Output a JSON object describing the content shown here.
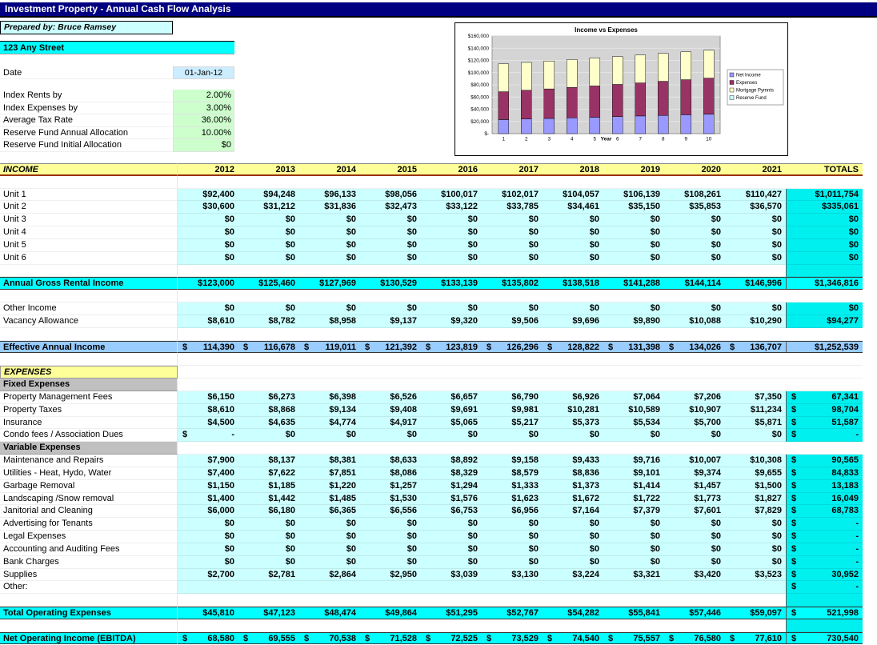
{
  "title_bar": {
    "title": "Investment Property - Annual Cash Flow Analysis"
  },
  "header": {
    "prepared_by": "Prepared by: Bruce Ramsey",
    "address": "123 Any Street",
    "date_label": "Date",
    "date_value": "01-Jan-12",
    "params": [
      {
        "label": "Index Rents by",
        "value": "2.00%"
      },
      {
        "label": "Index Expenses by",
        "value": "3.00%"
      },
      {
        "label": "Average Tax Rate",
        "value": "36.00%"
      },
      {
        "label": "Reserve Fund Annual Allocation",
        "value": "10.00%"
      },
      {
        "label": "Reserve Fund Initial Allocation",
        "value": "$0"
      }
    ]
  },
  "colors": {
    "title_bar": "#000080",
    "bright_cyan": "#00FFFF",
    "light_cyan": "#CCFFFF",
    "totals_cyan": "#00F0F0",
    "effective_blue": "#99CCFF",
    "section_yellow": "#FFFF99",
    "subsection_gray": "#C0C0C0",
    "param_green": "#CCFFCC",
    "date_blue": "#CCECFF",
    "header_underline": "#993300"
  },
  "chart_data": {
    "type": "bar",
    "stacked": true,
    "title": "Income vs Expenses",
    "xlabel": "Year",
    "categories": [
      "1",
      "2",
      "3",
      "4",
      "5",
      "6",
      "7",
      "8",
      "9",
      "10"
    ],
    "ylim": [
      0,
      160000
    ],
    "ytick_step": 20000,
    "ytick_labels": [
      "$-",
      "$20,000",
      "$40,000",
      "$60,000",
      "$80,000",
      "$100,000",
      "$120,000",
      "$140,000",
      "$160,000"
    ],
    "grid": true,
    "plot_bg": "#D4D4D4",
    "legend_position": "right",
    "series": [
      {
        "name": "Net Income",
        "color": "#9999FF",
        "values": [
          23000,
          23975,
          24958,
          25948,
          26945,
          27949,
          28960,
          29977,
          31000,
          32030
        ]
      },
      {
        "name": "Expenses",
        "color": "#993366",
        "values": [
          45810,
          47123,
          48474,
          49864,
          51295,
          52767,
          54282,
          55841,
          57446,
          59097
        ]
      },
      {
        "name": "Mortgage Pymnts",
        "color": "#FFFFCC",
        "values": [
          45580,
          45580,
          45580,
          45580,
          45580,
          45580,
          45580,
          45580,
          45580,
          45580
        ]
      }
    ],
    "legend": [
      {
        "label": "Net Income",
        "color": "#9999FF"
      },
      {
        "label": "Expenses",
        "color": "#993366"
      },
      {
        "label": "Mortgage Pymnts",
        "color": "#FFFFCC"
      },
      {
        "label": "Reserve Fund",
        "color": "#CCFFFF"
      }
    ]
  },
  "table": {
    "income_label": "INCOME",
    "totals_label": "TOTALS",
    "columns": [
      "2012",
      "2013",
      "2014",
      "2015",
      "2016",
      "2017",
      "2018",
      "2019",
      "2020",
      "2021"
    ],
    "rows": [
      {
        "t": "head"
      },
      {
        "t": "blank"
      },
      {
        "l": "Unit 1",
        "t": "data",
        "v": [
          "$92,400",
          "$94,248",
          "$96,133",
          "$98,056",
          "$100,017",
          "$102,017",
          "$104,057",
          "$106,139",
          "$108,261",
          "$110,427"
        ],
        "tot": "$1,011,754"
      },
      {
        "l": "Unit 2",
        "t": "data",
        "v": [
          "$30,600",
          "$31,212",
          "$31,836",
          "$32,473",
          "$33,122",
          "$33,785",
          "$34,461",
          "$35,150",
          "$35,853",
          "$36,570"
        ],
        "tot": "$335,061"
      },
      {
        "l": "Unit 3",
        "t": "data",
        "v": [
          "$0",
          "$0",
          "$0",
          "$0",
          "$0",
          "$0",
          "$0",
          "$0",
          "$0",
          "$0"
        ],
        "tot": "$0"
      },
      {
        "l": "Unit 4",
        "t": "data",
        "v": [
          "$0",
          "$0",
          "$0",
          "$0",
          "$0",
          "$0",
          "$0",
          "$0",
          "$0",
          "$0"
        ],
        "tot": "$0"
      },
      {
        "l": "Unit 5",
        "t": "data",
        "v": [
          "$0",
          "$0",
          "$0",
          "$0",
          "$0",
          "$0",
          "$0",
          "$0",
          "$0",
          "$0"
        ],
        "tot": "$0"
      },
      {
        "l": "Unit 6",
        "t": "data",
        "v": [
          "$0",
          "$0",
          "$0",
          "$0",
          "$0",
          "$0",
          "$0",
          "$0",
          "$0",
          "$0"
        ],
        "tot": "$0"
      },
      {
        "t": "blankct"
      },
      {
        "l": "Annual Gross Rental Income",
        "t": "cyan",
        "v": [
          "$123,000",
          "$125,460",
          "$127,969",
          "$130,529",
          "$133,139",
          "$135,802",
          "$138,518",
          "$141,288",
          "$144,114",
          "$146,996"
        ],
        "tot": "$1,346,816"
      },
      {
        "t": "blank"
      },
      {
        "l": "Other Income",
        "t": "data",
        "v": [
          "$0",
          "$0",
          "$0",
          "$0",
          "$0",
          "$0",
          "$0",
          "$0",
          "$0",
          "$0"
        ],
        "tot": "$0"
      },
      {
        "l": "Vacancy Allowance",
        "t": "data",
        "v": [
          "$8,610",
          "$8,782",
          "$8,958",
          "$9,137",
          "$9,320",
          "$9,506",
          "$9,696",
          "$9,890",
          "$10,088",
          "$10,290"
        ],
        "tot": "$94,277"
      },
      {
        "t": "blank"
      },
      {
        "l": "Effective Annual Income",
        "t": "blue",
        "v": [
          "$|114,390",
          "$|116,678",
          "$|119,011",
          "$|121,392",
          "$|123,819",
          "$|126,296",
          "$|128,822",
          "$|131,398",
          "$|134,026",
          "$|136,707"
        ],
        "tot": "$1,252,539"
      },
      {
        "t": "blank"
      },
      {
        "l": "EXPENSES",
        "t": "section"
      },
      {
        "l": "Fixed Expenses",
        "t": "sub"
      },
      {
        "l": "Property Management Fees",
        "t": "data",
        "v": [
          "$6,150",
          "$6,273",
          "$6,398",
          "$6,526",
          "$6,657",
          "$6,790",
          "$6,926",
          "$7,064",
          "$7,206",
          "$7,350"
        ],
        "tot": "$|67,341"
      },
      {
        "l": "Property Taxes",
        "t": "data",
        "v": [
          "$8,610",
          "$8,868",
          "$9,134",
          "$9,408",
          "$9,691",
          "$9,981",
          "$10,281",
          "$10,589",
          "$10,907",
          "$11,234"
        ],
        "tot": "$|98,704"
      },
      {
        "l": "Insurance",
        "t": "data",
        "v": [
          "$4,500",
          "$4,635",
          "$4,774",
          "$4,917",
          "$5,065",
          "$5,217",
          "$5,373",
          "$5,534",
          "$5,700",
          "$5,871"
        ],
        "tot": "$|51,587"
      },
      {
        "l": "Condo fees / Association Dues",
        "t": "data",
        "v": [
          "$|-",
          "$0",
          "$0",
          "$0",
          "$0",
          "$0",
          "$0",
          "$0",
          "$0",
          "$0"
        ],
        "tot": "$|-"
      },
      {
        "l": "Variable Expenses",
        "t": "sub"
      },
      {
        "l": "Maintenance and Repairs",
        "t": "data",
        "v": [
          "$7,900",
          "$8,137",
          "$8,381",
          "$8,633",
          "$8,892",
          "$9,158",
          "$9,433",
          "$9,716",
          "$10,007",
          "$10,308"
        ],
        "tot": "$|90,565"
      },
      {
        "l": "Utilities - Heat, Hydo, Water",
        "t": "data",
        "v": [
          "$7,400",
          "$7,622",
          "$7,851",
          "$8,086",
          "$8,329",
          "$8,579",
          "$8,836",
          "$9,101",
          "$9,374",
          "$9,655"
        ],
        "tot": "$|84,833"
      },
      {
        "l": "Garbage Removal",
        "t": "data",
        "v": [
          "$1,150",
          "$1,185",
          "$1,220",
          "$1,257",
          "$1,294",
          "$1,333",
          "$1,373",
          "$1,414",
          "$1,457",
          "$1,500"
        ],
        "tot": "$|13,183"
      },
      {
        "l": "Landscaping /Snow removal",
        "t": "data",
        "v": [
          "$1,400",
          "$1,442",
          "$1,485",
          "$1,530",
          "$1,576",
          "$1,623",
          "$1,672",
          "$1,722",
          "$1,773",
          "$1,827"
        ],
        "tot": "$|16,049"
      },
      {
        "l": "Janitorial and Cleaning",
        "t": "data",
        "v": [
          "$6,000",
          "$6,180",
          "$6,365",
          "$6,556",
          "$6,753",
          "$6,956",
          "$7,164",
          "$7,379",
          "$7,601",
          "$7,829"
        ],
        "tot": "$|68,783"
      },
      {
        "l": "Advertising for Tenants",
        "t": "data",
        "v": [
          "$0",
          "$0",
          "$0",
          "$0",
          "$0",
          "$0",
          "$0",
          "$0",
          "$0",
          "$0"
        ],
        "tot": "$|-"
      },
      {
        "l": "Legal Expenses",
        "t": "data",
        "v": [
          "$0",
          "$0",
          "$0",
          "$0",
          "$0",
          "$0",
          "$0",
          "$0",
          "$0",
          "$0"
        ],
        "tot": "$|-"
      },
      {
        "l": "Accounting and Auditing Fees",
        "t": "data",
        "v": [
          "$0",
          "$0",
          "$0",
          "$0",
          "$0",
          "$0",
          "$0",
          "$0",
          "$0",
          "$0"
        ],
        "tot": "$|-"
      },
      {
        "l": "Bank Charges",
        "t": "data",
        "v": [
          "$0",
          "$0",
          "$0",
          "$0",
          "$0",
          "$0",
          "$0",
          "$0",
          "$0",
          "$0"
        ],
        "tot": "$|-"
      },
      {
        "l": "Supplies",
        "t": "data",
        "v": [
          "$2,700",
          "$2,781",
          "$2,864",
          "$2,950",
          "$3,039",
          "$3,130",
          "$3,224",
          "$3,321",
          "$3,420",
          "$3,523"
        ],
        "tot": "$|30,952"
      },
      {
        "l": "Other:",
        "t": "data",
        "v": [
          "",
          "",
          "",
          "",
          "",
          "",
          "",
          "",
          "",
          ""
        ],
        "tot": "$|-"
      },
      {
        "t": "blankct"
      },
      {
        "l": "Total Operating Expenses",
        "t": "cyan",
        "v": [
          "$45,810",
          "$47,123",
          "$48,474",
          "$49,864",
          "$51,295",
          "$52,767",
          "$54,282",
          "$55,841",
          "$57,446",
          "$59,097"
        ],
        "tot": "$|521,998"
      },
      {
        "t": "blankct"
      },
      {
        "l": "Net Operating Income (EBITDA)",
        "t": "cyan",
        "v": [
          "$|68,580",
          "$|69,555",
          "$|70,538",
          "$|71,528",
          "$|72,525",
          "$|73,529",
          "$|74,540",
          "$|75,557",
          "$|76,580",
          "$|77,610"
        ],
        "tot": "$|730,540"
      }
    ]
  }
}
